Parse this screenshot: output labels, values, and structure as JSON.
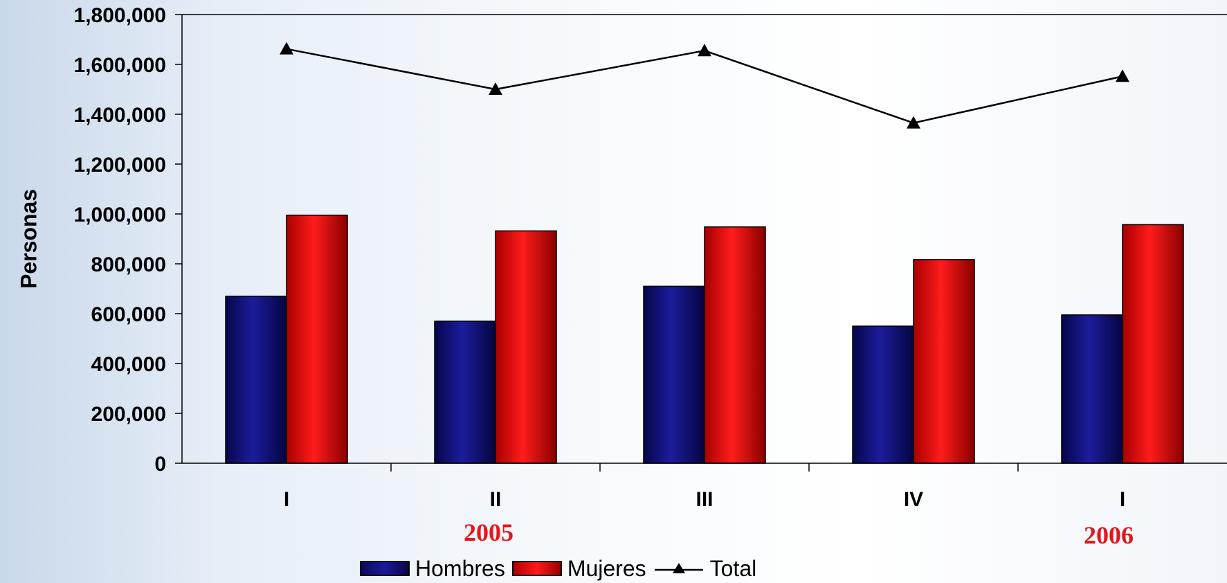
{
  "chart_data": {
    "type": "bar",
    "categories": [
      "I",
      "II",
      "III",
      "IV",
      "I"
    ],
    "series": [
      {
        "name": "Hombres",
        "type": "bar",
        "color": "#0b0b6e",
        "values": [
          670000,
          570000,
          710000,
          550000,
          595000
        ]
      },
      {
        "name": "Mujeres",
        "type": "bar",
        "color": "#ee0a0a",
        "values": [
          995000,
          932000,
          948000,
          817000,
          957000
        ]
      },
      {
        "name": "Total",
        "type": "line",
        "marker": "triangle",
        "color": "#000000",
        "values": [
          1662000,
          1500000,
          1655000,
          1365000,
          1552000
        ]
      }
    ],
    "ylabel": "Personas",
    "ylim": [
      0,
      1800000
    ],
    "yticks": [
      "0",
      "200,000",
      "400,000",
      "600,000",
      "800,000",
      "1,000,000",
      "1,200,000",
      "1,400,000",
      "1,600,000",
      "1,800,000"
    ],
    "year_labels": [
      {
        "text": "2005",
        "category_index": 1
      },
      {
        "text": "2006",
        "category_index": 4
      }
    ],
    "legend": {
      "position": "bottom"
    },
    "grid": false
  }
}
